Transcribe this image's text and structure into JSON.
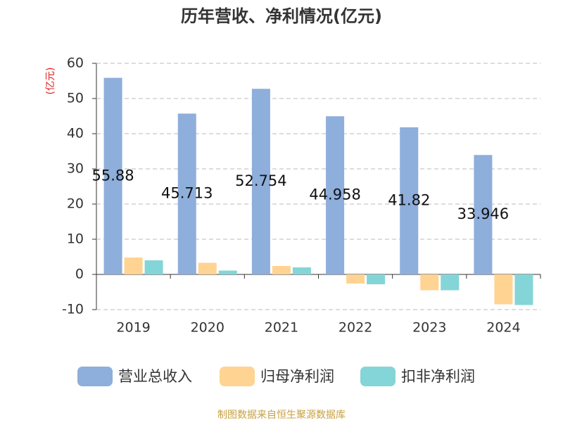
{
  "chart_data": {
    "type": "bar",
    "title": "历年营收、净利情况(亿元)",
    "y_label": "(亿元)",
    "source": "制图数据来自恒生聚源数据库",
    "categories": [
      "2019",
      "2020",
      "2021",
      "2022",
      "2023",
      "2024"
    ],
    "series": [
      {
        "name": "营业总收入",
        "color": "#8eaedb",
        "values": [
          55.88,
          45.713,
          52.754,
          44.958,
          41.82,
          33.946
        ]
      },
      {
        "name": "归母净利润",
        "color": "#ffd391",
        "values": [
          4.8,
          3.3,
          2.4,
          -2.6,
          -4.5,
          -8.5
        ]
      },
      {
        "name": "扣非净利润",
        "color": "#84d5d7",
        "values": [
          4.0,
          1.1,
          2.0,
          -2.8,
          -4.5,
          -8.7
        ]
      }
    ],
    "ylim": [
      -10,
      60
    ],
    "yticks": [
      -10,
      0,
      10,
      20,
      30,
      40,
      50,
      60
    ],
    "grid": true
  }
}
